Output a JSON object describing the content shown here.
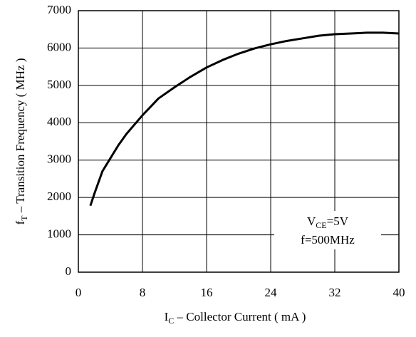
{
  "chart_data": {
    "type": "line",
    "xlabel": {
      "main": "I",
      "sub": "C",
      "rest": " – Collector Current ( mA )"
    },
    "ylabel": {
      "main": "f",
      "sub": "T",
      "rest": " – Transition Frequency  ( MHz )"
    },
    "annotation": {
      "line1": {
        "main": "V",
        "sub": "CE",
        "rest": "=5V"
      },
      "line2": "f=500MHz"
    },
    "x": [
      1.5,
      2,
      3,
      4,
      5,
      6,
      8,
      10,
      12,
      14,
      16,
      18,
      20,
      22,
      24,
      26,
      28,
      30,
      32,
      34,
      36,
      38,
      40
    ],
    "series": [
      {
        "color": "#000000",
        "values": [
          1780,
          2100,
          2700,
          3050,
          3400,
          3700,
          4200,
          4650,
          4950,
          5230,
          5480,
          5680,
          5850,
          5990,
          6100,
          6190,
          6260,
          6330,
          6370,
          6390,
          6410,
          6410,
          6390
        ]
      }
    ],
    "xlim": [
      0,
      40
    ],
    "xticks": [
      0,
      8,
      16,
      24,
      32,
      40
    ],
    "ylim": [
      0,
      7000
    ],
    "yticks": [
      0,
      1000,
      2000,
      3000,
      4000,
      5000,
      6000,
      7000
    ],
    "grid": true
  }
}
